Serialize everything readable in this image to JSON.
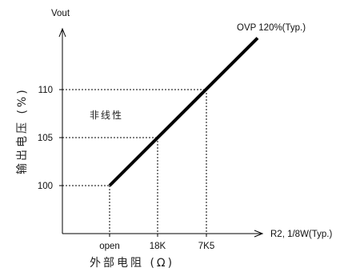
{
  "chart_data": {
    "type": "line",
    "ylabel": "Vout",
    "xlabel": "R2, 1/8W(Typ.)",
    "y_axis_title": "输出电压 (%)",
    "x_axis_title": "外部电阻 (Ω)",
    "x_categories": [
      "open",
      "18K",
      "7K5"
    ],
    "y_ticks": [
      "100",
      "105",
      "110"
    ],
    "ylim": [
      95,
      115
    ],
    "series": [
      {
        "points": [
          {
            "x": "open",
            "y": 100
          },
          {
            "x": "18K",
            "y": 105
          },
          {
            "x": "7K5",
            "y": 110
          },
          {
            "x": "end",
            "y": 120
          }
        ]
      }
    ],
    "annotations": {
      "ovp": "OVP 120%(Typ.)",
      "nonlinear": "非线性"
    },
    "grid": false
  }
}
